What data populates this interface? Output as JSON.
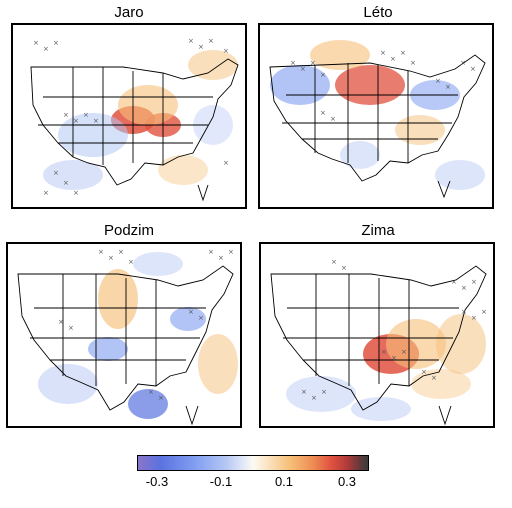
{
  "panels": [
    {
      "title": "Jaro"
    },
    {
      "title": "Léto"
    },
    {
      "title": "Podzim"
    },
    {
      "title": "Zima"
    }
  ],
  "colorbar": {
    "ticks": [
      "-0.3",
      "-0.1",
      "0.1",
      "0.3"
    ],
    "range": [
      -0.4,
      0.4
    ],
    "colors": [
      "#8a75c9",
      "#5a73e0",
      "#b3c6f4",
      "#fbfaf2",
      "#f6c079",
      "#e0523f",
      "#3b3b3b"
    ]
  }
}
